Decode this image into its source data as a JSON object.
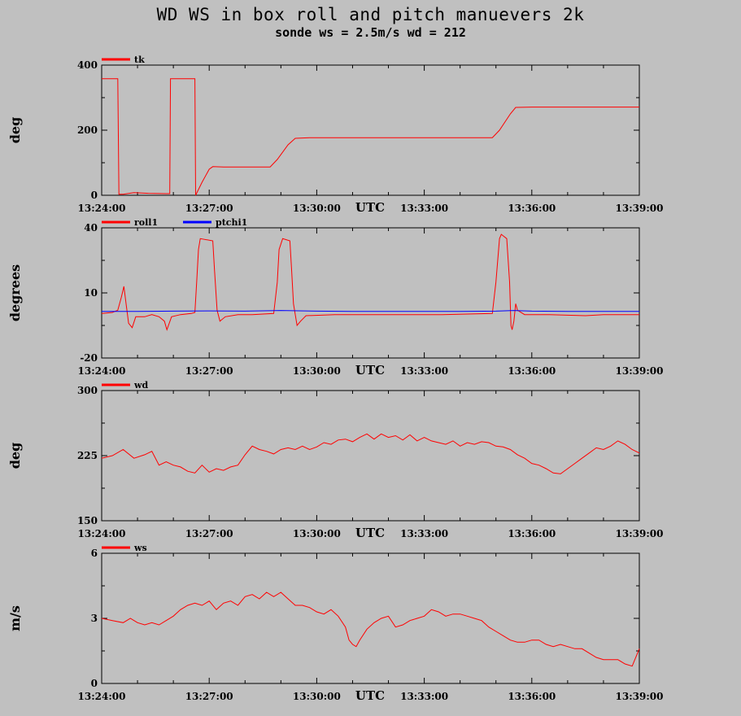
{
  "title": "WD WS in box roll and pitch manuevers 2k",
  "subtitle": "sonde ws = 2.5m/s wd = 212",
  "chart_data": [
    {
      "type": "line",
      "ylabel": "deg",
      "xlabel": "UTC",
      "x_ticks": [
        "13:24:00",
        "13:27:00",
        "13:30:00",
        "13:33:00",
        "13:36:00",
        "13:39:00"
      ],
      "xlim_min": [
        0,
        15
      ],
      "ylim": [
        0,
        400
      ],
      "y_ticks": [
        0,
        200,
        400
      ],
      "y_labels": [
        "0",
        "200",
        "400"
      ],
      "series": [
        {
          "name": "tk",
          "color": "#ff0000",
          "points": [
            [
              0,
              358
            ],
            [
              0.45,
              358
            ],
            [
              0.48,
              3
            ],
            [
              0.6,
              3
            ],
            [
              0.9,
              8
            ],
            [
              1.3,
              6
            ],
            [
              1.8,
              5
            ],
            [
              1.9,
              5
            ],
            [
              1.92,
              358
            ],
            [
              2.6,
              358
            ],
            [
              2.62,
              0
            ],
            [
              2.8,
              40
            ],
            [
              3.0,
              80
            ],
            [
              3.1,
              88
            ],
            [
              3.4,
              87
            ],
            [
              4.0,
              87
            ],
            [
              4.7,
              87
            ],
            [
              4.9,
              110
            ],
            [
              5.2,
              155
            ],
            [
              5.4,
              175
            ],
            [
              5.8,
              177
            ],
            [
              6.5,
              177
            ],
            [
              8.0,
              177
            ],
            [
              9.5,
              177
            ],
            [
              10.9,
              177
            ],
            [
              11.1,
              200
            ],
            [
              11.4,
              250
            ],
            [
              11.55,
              270
            ],
            [
              12.0,
              271
            ],
            [
              13.0,
              271
            ],
            [
              14.0,
              271
            ],
            [
              15.0,
              271
            ]
          ]
        }
      ]
    },
    {
      "type": "line",
      "ylabel": "degrees",
      "xlabel": "UTC",
      "x_ticks": [
        "13:24:00",
        "13:27:00",
        "13:30:00",
        "13:33:00",
        "13:36:00",
        "13:39:00"
      ],
      "xlim_min": [
        0,
        15
      ],
      "ylim": [
        -20,
        40
      ],
      "y_ticks": [
        -20,
        10,
        40
      ],
      "y_labels": [
        "-20",
        "10",
        "40"
      ],
      "series": [
        {
          "name": "roll1",
          "color": "#ff0000",
          "points": [
            [
              0,
              0.5
            ],
            [
              0.3,
              1
            ],
            [
              0.45,
              2
            ],
            [
              0.55,
              8
            ],
            [
              0.62,
              13
            ],
            [
              0.68,
              5
            ],
            [
              0.75,
              -4
            ],
            [
              0.85,
              -6
            ],
            [
              0.95,
              -1
            ],
            [
              1.2,
              -1
            ],
            [
              1.4,
              0
            ],
            [
              1.6,
              -1
            ],
            [
              1.75,
              -3
            ],
            [
              1.82,
              -7
            ],
            [
              1.95,
              -1
            ],
            [
              2.2,
              0
            ],
            [
              2.5,
              0.5
            ],
            [
              2.6,
              1
            ],
            [
              2.65,
              15
            ],
            [
              2.7,
              30
            ],
            [
              2.75,
              35
            ],
            [
              3.1,
              34
            ],
            [
              3.15,
              20
            ],
            [
              3.22,
              2
            ],
            [
              3.3,
              -3
            ],
            [
              3.45,
              -1
            ],
            [
              3.8,
              0
            ],
            [
              4.2,
              0
            ],
            [
              4.8,
              0.5
            ],
            [
              4.9,
              15
            ],
            [
              4.95,
              30
            ],
            [
              5.05,
              35
            ],
            [
              5.25,
              34
            ],
            [
              5.3,
              20
            ],
            [
              5.35,
              5
            ],
            [
              5.45,
              -5
            ],
            [
              5.55,
              -3
            ],
            [
              5.7,
              -0.5
            ],
            [
              6.5,
              0
            ],
            [
              8.0,
              0
            ],
            [
              9.5,
              0
            ],
            [
              10.9,
              0.5
            ],
            [
              11.0,
              15
            ],
            [
              11.1,
              35
            ],
            [
              11.15,
              37
            ],
            [
              11.3,
              35
            ],
            [
              11.38,
              15
            ],
            [
              11.42,
              -5
            ],
            [
              11.45,
              -7
            ],
            [
              11.5,
              -3
            ],
            [
              11.55,
              5
            ],
            [
              11.6,
              2
            ],
            [
              11.8,
              0
            ],
            [
              12.5,
              0
            ],
            [
              13.5,
              -0.5
            ],
            [
              14.0,
              0
            ],
            [
              15.0,
              0
            ]
          ]
        },
        {
          "name": "ptchi1",
          "color": "#0000ff",
          "points": [
            [
              0,
              1.5
            ],
            [
              1.0,
              1.5
            ],
            [
              2.0,
              1.6
            ],
            [
              3.0,
              1.7
            ],
            [
              4.0,
              1.6
            ],
            [
              5.0,
              1.9
            ],
            [
              6.0,
              1.6
            ],
            [
              7.0,
              1.5
            ],
            [
              8.0,
              1.5
            ],
            [
              9.0,
              1.5
            ],
            [
              10.0,
              1.5
            ],
            [
              11.0,
              1.6
            ],
            [
              11.5,
              1.9
            ],
            [
              12.0,
              1.6
            ],
            [
              13.0,
              1.5
            ],
            [
              14.0,
              1.5
            ],
            [
              15.0,
              1.5
            ]
          ]
        }
      ]
    },
    {
      "type": "line",
      "ylabel": "deg",
      "xlabel": "UTC",
      "x_ticks": [
        "13:24:00",
        "13:27:00",
        "13:30:00",
        "13:33:00",
        "13:36:00",
        "13:39:00"
      ],
      "xlim_min": [
        0,
        15
      ],
      "ylim": [
        150,
        300
      ],
      "y_ticks": [
        150,
        225,
        300
      ],
      "y_labels": [
        "150",
        "225",
        "300"
      ],
      "series": [
        {
          "name": "wd",
          "color": "#ff0000",
          "points": [
            [
              0,
              222
            ],
            [
              0.3,
              225
            ],
            [
              0.6,
              232
            ],
            [
              0.9,
              222
            ],
            [
              1.2,
              226
            ],
            [
              1.4,
              230
            ],
            [
              1.6,
              214
            ],
            [
              1.8,
              218
            ],
            [
              2.0,
              214
            ],
            [
              2.2,
              212
            ],
            [
              2.4,
              207
            ],
            [
              2.6,
              205
            ],
            [
              2.8,
              214
            ],
            [
              3.0,
              206
            ],
            [
              3.2,
              210
            ],
            [
              3.4,
              208
            ],
            [
              3.6,
              212
            ],
            [
              3.8,
              214
            ],
            [
              4.0,
              226
            ],
            [
              4.2,
              236
            ],
            [
              4.4,
              232
            ],
            [
              4.6,
              230
            ],
            [
              4.8,
              227
            ],
            [
              5.0,
              232
            ],
            [
              5.2,
              234
            ],
            [
              5.4,
              232
            ],
            [
              5.6,
              236
            ],
            [
              5.8,
              232
            ],
            [
              6.0,
              235
            ],
            [
              6.2,
              240
            ],
            [
              6.4,
              238
            ],
            [
              6.6,
              243
            ],
            [
              6.8,
              244
            ],
            [
              7.0,
              241
            ],
            [
              7.2,
              246
            ],
            [
              7.4,
              250
            ],
            [
              7.6,
              244
            ],
            [
              7.8,
              250
            ],
            [
              8.0,
              246
            ],
            [
              8.2,
              248
            ],
            [
              8.4,
              243
            ],
            [
              8.6,
              249
            ],
            [
              8.8,
              242
            ],
            [
              9.0,
              246
            ],
            [
              9.2,
              242
            ],
            [
              9.4,
              240
            ],
            [
              9.6,
              238
            ],
            [
              9.8,
              242
            ],
            [
              10.0,
              236
            ],
            [
              10.2,
              240
            ],
            [
              10.4,
              238
            ],
            [
              10.6,
              241
            ],
            [
              10.8,
              240
            ],
            [
              11.0,
              236
            ],
            [
              11.2,
              235
            ],
            [
              11.4,
              232
            ],
            [
              11.6,
              226
            ],
            [
              11.8,
              222
            ],
            [
              12.0,
              216
            ],
            [
              12.2,
              214
            ],
            [
              12.4,
              210
            ],
            [
              12.6,
              205
            ],
            [
              12.8,
              204
            ],
            [
              13.0,
              210
            ],
            [
              13.2,
              216
            ],
            [
              13.4,
              222
            ],
            [
              13.6,
              228
            ],
            [
              13.8,
              234
            ],
            [
              14.0,
              232
            ],
            [
              14.2,
              236
            ],
            [
              14.4,
              242
            ],
            [
              14.6,
              238
            ],
            [
              14.8,
              232
            ],
            [
              15.0,
              228
            ]
          ]
        }
      ]
    },
    {
      "type": "line",
      "ylabel": "m/s",
      "xlabel": "UTC",
      "x_ticks": [
        "13:24:00",
        "13:27:00",
        "13:30:00",
        "13:33:00",
        "13:36:00",
        "13:39:00"
      ],
      "xlim_min": [
        0,
        15
      ],
      "ylim": [
        0,
        6
      ],
      "y_ticks": [
        0,
        3,
        6
      ],
      "y_labels": [
        "0",
        "3",
        "6"
      ],
      "series": [
        {
          "name": "ws",
          "color": "#ff0000",
          "points": [
            [
              0,
              3.0
            ],
            [
              0.3,
              2.9
            ],
            [
              0.6,
              2.8
            ],
            [
              0.8,
              3.0
            ],
            [
              1.0,
              2.8
            ],
            [
              1.2,
              2.7
            ],
            [
              1.4,
              2.8
            ],
            [
              1.6,
              2.7
            ],
            [
              1.8,
              2.9
            ],
            [
              2.0,
              3.1
            ],
            [
              2.2,
              3.4
            ],
            [
              2.4,
              3.6
            ],
            [
              2.6,
              3.7
            ],
            [
              2.8,
              3.6
            ],
            [
              3.0,
              3.8
            ],
            [
              3.2,
              3.4
            ],
            [
              3.4,
              3.7
            ],
            [
              3.6,
              3.8
            ],
            [
              3.8,
              3.6
            ],
            [
              4.0,
              4.0
            ],
            [
              4.2,
              4.1
            ],
            [
              4.4,
              3.9
            ],
            [
              4.6,
              4.2
            ],
            [
              4.8,
              4.0
            ],
            [
              5.0,
              4.2
            ],
            [
              5.2,
              3.9
            ],
            [
              5.4,
              3.6
            ],
            [
              5.6,
              3.6
            ],
            [
              5.8,
              3.5
            ],
            [
              6.0,
              3.3
            ],
            [
              6.2,
              3.2
            ],
            [
              6.4,
              3.4
            ],
            [
              6.6,
              3.1
            ],
            [
              6.8,
              2.6
            ],
            [
              6.9,
              2.0
            ],
            [
              7.0,
              1.8
            ],
            [
              7.1,
              1.7
            ],
            [
              7.2,
              2.0
            ],
            [
              7.4,
              2.5
            ],
            [
              7.6,
              2.8
            ],
            [
              7.8,
              3.0
            ],
            [
              8.0,
              3.1
            ],
            [
              8.2,
              2.6
            ],
            [
              8.4,
              2.7
            ],
            [
              8.6,
              2.9
            ],
            [
              8.8,
              3.0
            ],
            [
              9.0,
              3.1
            ],
            [
              9.2,
              3.4
            ],
            [
              9.4,
              3.3
            ],
            [
              9.6,
              3.1
            ],
            [
              9.8,
              3.2
            ],
            [
              10.0,
              3.2
            ],
            [
              10.2,
              3.1
            ],
            [
              10.4,
              3.0
            ],
            [
              10.6,
              2.9
            ],
            [
              10.8,
              2.6
            ],
            [
              11.0,
              2.4
            ],
            [
              11.2,
              2.2
            ],
            [
              11.4,
              2.0
            ],
            [
              11.6,
              1.9
            ],
            [
              11.8,
              1.9
            ],
            [
              12.0,
              2.0
            ],
            [
              12.2,
              2.0
            ],
            [
              12.4,
              1.8
            ],
            [
              12.6,
              1.7
            ],
            [
              12.8,
              1.8
            ],
            [
              13.0,
              1.7
            ],
            [
              13.2,
              1.6
            ],
            [
              13.4,
              1.6
            ],
            [
              13.6,
              1.4
            ],
            [
              13.8,
              1.2
            ],
            [
              14.0,
              1.1
            ],
            [
              14.2,
              1.1
            ],
            [
              14.4,
              1.1
            ],
            [
              14.6,
              0.9
            ],
            [
              14.8,
              0.8
            ],
            [
              15.0,
              1.6
            ]
          ]
        }
      ]
    }
  ]
}
